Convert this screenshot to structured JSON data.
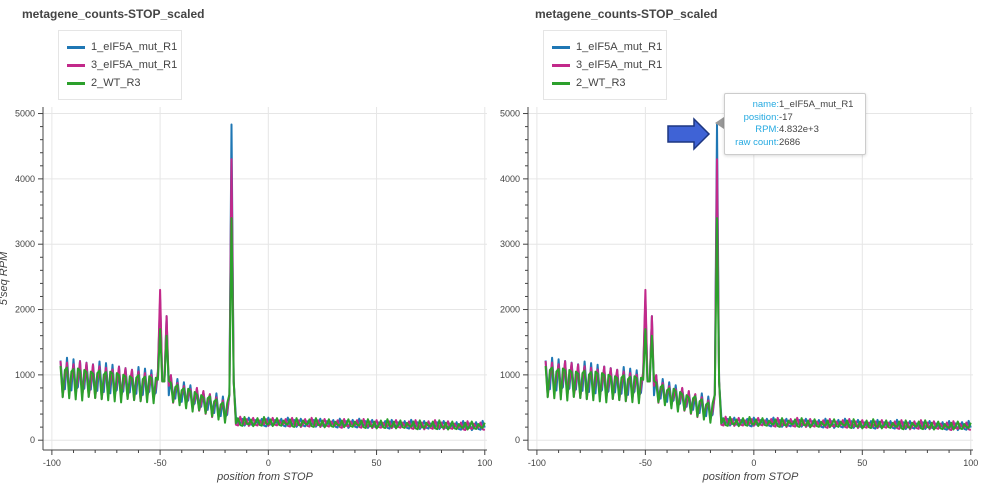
{
  "colors": {
    "grid": "#e6e6e6",
    "axis": "#444444",
    "pointer_fill": "#3f63d6",
    "pointer_stroke": "#1d3680"
  },
  "chart_data": [
    {
      "type": "line",
      "title": "metagene_counts-STOP_scaled",
      "xlabel": "position from STOP",
      "ylabel": "5'seq RPM",
      "xlim": [
        -100,
        100
      ],
      "ylim": [
        0,
        5000
      ],
      "x_ticks": [
        "-100",
        "-50",
        "0",
        "50",
        "100"
      ],
      "y_ticks": [
        "0",
        "1000",
        "2000",
        "3000",
        "4000",
        "5000"
      ],
      "grid": true,
      "legend_placement": "top-left",
      "series": [
        {
          "name": "1_eIF5A_mut_R1",
          "color": "#1f77b4",
          "offset": 0
        },
        {
          "name": "3_eIF5A_mut_R1",
          "color": "#c2298a",
          "offset": 1
        },
        {
          "name": "2_WT_R3",
          "color": "#2ca02c",
          "offset": 2
        }
      ],
      "x": [
        -96,
        100
      ],
      "key_points": {
        "peak_position": -17,
        "peak_value_mut": 4832,
        "peak_value_wt": 3400,
        "secondary_peak_position": -50,
        "secondary_peak_value": 2300
      }
    },
    {
      "type": "line",
      "title": "metagene_counts-STOP_scaled",
      "xlabel": "position from STOP",
      "ylabel": "",
      "xlim": [
        -100,
        100
      ],
      "ylim": [
        0,
        5000
      ],
      "x_ticks": [
        "-100",
        "-50",
        "0",
        "50",
        "100"
      ],
      "y_ticks": [
        "0",
        "1000",
        "2000",
        "3000",
        "4000",
        "5000"
      ],
      "grid": true,
      "legend_placement": "top-left",
      "series": [
        {
          "name": "1_eIF5A_mut_R1",
          "color": "#1f77b4",
          "offset": 0
        },
        {
          "name": "3_eIF5A_mut_R1",
          "color": "#c2298a",
          "offset": 1
        },
        {
          "name": "2_WT_R3",
          "color": "#2ca02c",
          "offset": 2
        }
      ],
      "x": [
        -96,
        100
      ],
      "key_points": {
        "peak_position": -17,
        "peak_value_mut": 4832,
        "peak_value_wt": 3400,
        "secondary_peak_position": -50,
        "secondary_peak_value": 2300
      }
    }
  ],
  "tooltip": {
    "rows": [
      {
        "key": "name:",
        "value": "1_eIF5A_mut_R1"
      },
      {
        "key": "position:",
        "value": "-17"
      },
      {
        "key": "RPM:",
        "value": "4.832e+3"
      },
      {
        "key": "raw count:",
        "value": "2686"
      }
    ]
  }
}
